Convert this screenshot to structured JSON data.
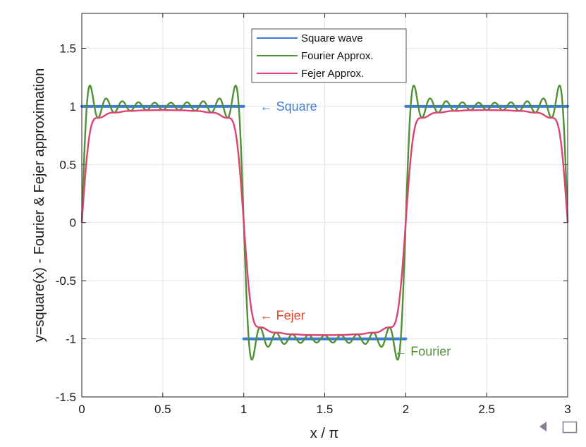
{
  "chart_data": {
    "type": "line",
    "title": "",
    "xlabel": "x / π",
    "ylabel": "y=square(x) - Fourier & Fejer approximation",
    "xlim": [
      0,
      3
    ],
    "ylim": [
      -1.5,
      1.8
    ],
    "x_ticks": [
      "0",
      "0.5",
      "1",
      "1.5",
      "2",
      "2.5",
      "3"
    ],
    "y_ticks": [
      "-1.5",
      "-1",
      "-0.5",
      "0",
      "0.5",
      "1",
      "1.5"
    ],
    "grid": true,
    "legend_position": "top-center",
    "series": [
      {
        "name": "Square wave",
        "color": "#3b7ddd",
        "segments": [
          {
            "x": [
              0,
              1
            ],
            "y": [
              1,
              1
            ]
          },
          {
            "x": [
              1,
              2
            ],
            "y": [
              -1,
              -1
            ]
          },
          {
            "x": [
              2,
              3
            ],
            "y": [
              1,
              1
            ]
          }
        ]
      },
      {
        "name": "Fourier Approx.",
        "color": "#4f9134",
        "kind": "partial Fourier sum, odd harmonics up to n = 19",
        "overshoot_peak": 1.18,
        "overshoot_peak_x": 0.1
      },
      {
        "name": "Fejer Approx.",
        "color": "#dc4470",
        "kind": "Fejer (Cesaro mean) sum of the same harmonics",
        "plateau": 1.03
      }
    ],
    "annotations": [
      {
        "text": "← Square",
        "color": "#3b7ddd",
        "x": 1.1,
        "y": 1.0
      },
      {
        "text": "← Fejer",
        "color": "#e0452b",
        "x": 1.1,
        "y": -0.8
      },
      {
        "text": "← Fourier",
        "color": "#4f9134",
        "x": 1.93,
        "y": -1.11
      }
    ]
  },
  "nav": {
    "prev_icon": "triangle-left-icon",
    "frame_icon": "square-frame-icon",
    "color": "#8a7c98"
  }
}
